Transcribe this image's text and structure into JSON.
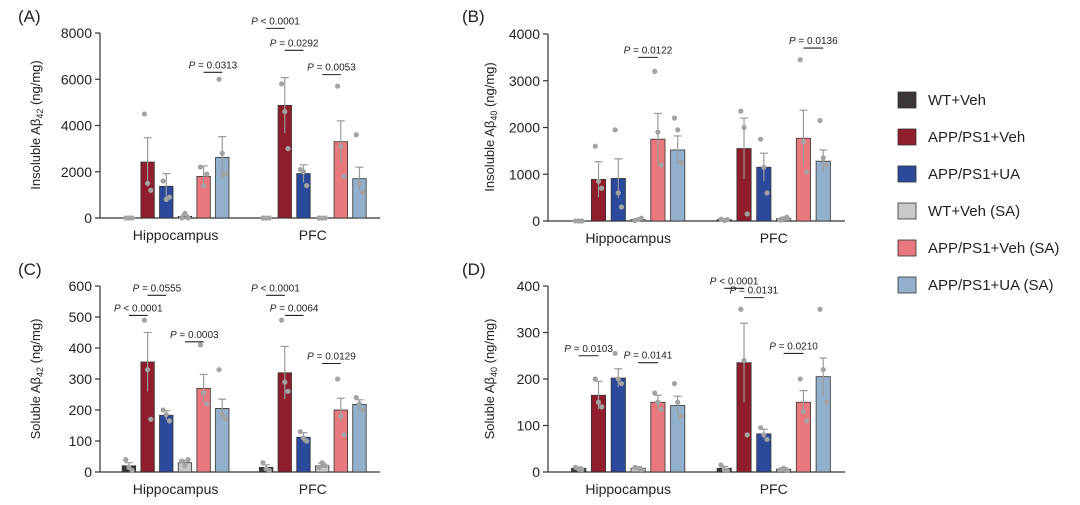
{
  "colors": {
    "wt": "#3a3536",
    "app": "#8f1d2c",
    "ua": "#2b4a9c",
    "wt_sa": "#c9c9c9",
    "app_sa": "#e8787d",
    "ua_sa": "#92b0cb",
    "dot": "#a3a3a3",
    "axis": "#333333"
  },
  "legend": {
    "items": [
      {
        "label": "WT+Veh",
        "key": "wt"
      },
      {
        "label": "APP/PS1+Veh",
        "key": "app"
      },
      {
        "label": "APP/PS1+UA",
        "key": "ua"
      },
      {
        "label": "WT+Veh (SA)",
        "key": "wt_sa"
      },
      {
        "label": "APP/PS1+Veh (SA)",
        "key": "app_sa"
      },
      {
        "label": "APP/PS1+UA (SA)",
        "key": "ua_sa"
      }
    ]
  },
  "chart_data": [
    {
      "panel": "(A)",
      "type": "bar",
      "ylabel_pre": "Insoluble Aβ",
      "ylabel_sub": "42",
      "ylabel_post": " (ng/mg)",
      "ylim": [
        0,
        8000
      ],
      "yticks": [
        0,
        2000,
        4000,
        6000,
        8000
      ],
      "categories": [
        "Hippocampus",
        "PFC"
      ],
      "series": [
        {
          "key": "wt",
          "values": [
            0,
            0
          ],
          "errors": [
            0,
            0
          ],
          "points": [
            [
              0,
              0,
              0
            ],
            [
              0,
              0,
              0
            ]
          ]
        },
        {
          "key": "app",
          "values": [
            2420,
            4870
          ],
          "errors": [
            1050,
            1200
          ],
          "points": [
            [
              4500,
              1500,
              1200
            ],
            [
              5800,
              4600,
              3000
            ]
          ]
        },
        {
          "key": "ua",
          "values": [
            1370,
            1920
          ],
          "errors": [
            550,
            380
          ],
          "points": [
            [
              1600,
              800,
              900
            ],
            [
              2100,
              2000,
              1400
            ]
          ]
        },
        {
          "key": "wt_sa",
          "values": [
            70,
            0
          ],
          "errors": [
            60,
            0
          ],
          "points": [
            [
              0,
              200,
              0
            ],
            [
              0,
              0,
              0
            ]
          ]
        },
        {
          "key": "app_sa",
          "values": [
            1800,
            3300
          ],
          "errors": [
            450,
            900
          ],
          "points": [
            [
              2200,
              1400,
              1900
            ],
            [
              5700,
              3100,
              1800
            ]
          ]
        },
        {
          "key": "ua_sa",
          "values": [
            2620,
            1700
          ],
          "errors": [
            900,
            500
          ],
          "points": [
            [
              6000,
              2800,
              1900
            ],
            [
              3600,
              1500,
              1100
            ]
          ]
        }
      ],
      "comparisons": [
        {
          "text": "P = 0.0313",
          "cat": 0,
          "a": 4,
          "b": 5,
          "y": 6300
        },
        {
          "text": "P < 0.0001",
          "cat": 1,
          "a": 0,
          "b": 1,
          "y": 8200
        },
        {
          "text": "P = 0.0292",
          "cat": 1,
          "a": 1,
          "b": 2,
          "y": 7250
        },
        {
          "text": "P = 0.0053",
          "cat": 1,
          "a": 3,
          "b": 4,
          "y": 6200
        }
      ]
    },
    {
      "panel": "(B)",
      "type": "bar",
      "ylabel_pre": "Insoluble Aβ",
      "ylabel_sub": "40",
      "ylabel_post": " (ng/mg)",
      "ylim": [
        0,
        4000
      ],
      "yticks": [
        0,
        1000,
        2000,
        3000,
        4000
      ],
      "categories": [
        "Hippocampus",
        "PFC"
      ],
      "series": [
        {
          "key": "wt",
          "values": [
            0,
            30
          ],
          "errors": [
            0,
            20
          ],
          "points": [
            [
              0,
              0,
              0
            ],
            [
              40,
              10,
              30
            ]
          ]
        },
        {
          "key": "app",
          "values": [
            890,
            1550
          ],
          "errors": [
            380,
            650
          ],
          "points": [
            [
              1600,
              850,
              700
            ],
            [
              2350,
              2000,
              150
            ]
          ]
        },
        {
          "key": "ua",
          "values": [
            910,
            1150
          ],
          "errors": [
            420,
            300
          ],
          "points": [
            [
              1950,
              600,
              300
            ],
            [
              1750,
              1150,
              600
            ]
          ]
        },
        {
          "key": "wt_sa",
          "values": [
            30,
            50
          ],
          "errors": [
            20,
            30
          ],
          "points": [
            [
              10,
              30,
              60
            ],
            [
              20,
              50,
              80
            ]
          ]
        },
        {
          "key": "app_sa",
          "values": [
            1750,
            1770
          ],
          "errors": [
            550,
            600
          ],
          "points": [
            [
              3200,
              1900,
              1200
            ],
            [
              3450,
              1700,
              1050
            ]
          ]
        },
        {
          "key": "ua_sa",
          "values": [
            1520,
            1280
          ],
          "errors": [
            300,
            240
          ],
          "points": [
            [
              2200,
              1950,
              1250
            ],
            [
              2150,
              1350,
              1200
            ]
          ]
        }
      ],
      "comparisons": [
        {
          "text": "P = 0.0122",
          "cat": 0,
          "a": 3,
          "b": 4,
          "y": 3500
        },
        {
          "text": "P = 0.0136",
          "cat": 1,
          "a": 4,
          "b": 5,
          "y": 3700
        }
      ]
    },
    {
      "panel": "(C)",
      "type": "bar",
      "ylabel_pre": "Soluble Aβ",
      "ylabel_sub": "42",
      "ylabel_post": " (ng/mg)",
      "ylim": [
        0,
        600
      ],
      "yticks": [
        0,
        100,
        200,
        300,
        400,
        500,
        600
      ],
      "categories": [
        "Hippocampus",
        "PFC"
      ],
      "series": [
        {
          "key": "wt",
          "values": [
            20,
            15
          ],
          "errors": [
            10,
            8
          ],
          "points": [
            [
              40,
              15,
              5
            ],
            [
              30,
              10,
              5
            ]
          ]
        },
        {
          "key": "app",
          "values": [
            355,
            320
          ],
          "errors": [
            95,
            85
          ],
          "points": [
            [
              490,
              330,
              170
            ],
            [
              490,
              290,
              260
            ]
          ]
        },
        {
          "key": "ua",
          "values": [
            183,
            112
          ],
          "errors": [
            15,
            15
          ],
          "points": [
            [
              200,
              185,
              165
            ],
            [
              130,
              110,
              100
            ]
          ]
        },
        {
          "key": "wt_sa",
          "values": [
            30,
            20
          ],
          "errors": [
            8,
            8
          ],
          "points": [
            [
              35,
              20,
              40
            ],
            [
              15,
              30,
              20
            ]
          ]
        },
        {
          "key": "app_sa",
          "values": [
            270,
            200
          ],
          "errors": [
            45,
            38
          ],
          "points": [
            [
              410,
              255,
              220
            ],
            [
              300,
              180,
              120
            ]
          ]
        },
        {
          "key": "ua_sa",
          "values": [
            205,
            218
          ],
          "errors": [
            30,
            15
          ],
          "points": [
            [
              330,
              185,
              170
            ],
            [
              240,
              220,
              200
            ]
          ]
        }
      ],
      "comparisons": [
        {
          "text": "P < 0.0001",
          "cat": 0,
          "a": 0,
          "b": 1,
          "y": 505
        },
        {
          "text": "P = 0.0555",
          "cat": 0,
          "a": 1,
          "b": 2,
          "y": 570
        },
        {
          "text": "P = 0.0003",
          "cat": 0,
          "a": 3,
          "b": 4,
          "y": 420
        },
        {
          "text": "P < 0.0001",
          "cat": 1,
          "a": 0,
          "b": 1,
          "y": 570
        },
        {
          "text": "P = 0.0064",
          "cat": 1,
          "a": 1,
          "b": 2,
          "y": 505
        },
        {
          "text": "P = 0.0129",
          "cat": 1,
          "a": 3,
          "b": 4,
          "y": 350
        }
      ]
    },
    {
      "panel": "(D)",
      "type": "bar",
      "ylabel_pre": "Soluble Aβ",
      "ylabel_sub": "40",
      "ylabel_post": " (ng/mg)",
      "ylim": [
        0,
        400
      ],
      "yticks": [
        0,
        100,
        200,
        300,
        400
      ],
      "categories": [
        "Hippocampus",
        "PFC"
      ],
      "series": [
        {
          "key": "wt",
          "values": [
            8,
            8
          ],
          "errors": [
            3,
            4
          ],
          "points": [
            [
              10,
              6,
              5
            ],
            [
              15,
              5,
              3
            ]
          ]
        },
        {
          "key": "app",
          "values": [
            165,
            235
          ],
          "errors": [
            30,
            85
          ],
          "points": [
            [
              200,
              150,
              140
            ],
            [
              350,
              240,
              80
            ]
          ]
        },
        {
          "key": "ua",
          "values": [
            202,
            82
          ],
          "errors": [
            20,
            10
          ],
          "points": [
            [
              255,
              200,
              190
            ],
            [
              95,
              80,
              70
            ]
          ]
        },
        {
          "key": "wt_sa",
          "values": [
            8,
            6
          ],
          "errors": [
            3,
            3
          ],
          "points": [
            [
              10,
              8,
              5
            ],
            [
              5,
              8,
              3
            ]
          ]
        },
        {
          "key": "app_sa",
          "values": [
            150,
            150
          ],
          "errors": [
            15,
            25
          ],
          "points": [
            [
              170,
              150,
              135
            ],
            [
              200,
              130,
              110
            ]
          ]
        },
        {
          "key": "ua_sa",
          "values": [
            143,
            205
          ],
          "errors": [
            20,
            40
          ],
          "points": [
            [
              190,
              150,
              120
            ],
            [
              350,
              220,
              150
            ]
          ]
        }
      ],
      "comparisons": [
        {
          "text": "P = 0.0103",
          "cat": 0,
          "a": 0,
          "b": 1,
          "y": 250
        },
        {
          "text": "P = 0.0141",
          "cat": 0,
          "a": 3,
          "b": 4,
          "y": 235
        },
        {
          "text": "P < 0.0001",
          "cat": 1,
          "a": 0,
          "b": 1,
          "y": 395
        },
        {
          "text": "P = 0.0131",
          "cat": 1,
          "a": 1,
          "b": 2,
          "y": 375
        },
        {
          "text": "P = 0.0210",
          "cat": 1,
          "a": 3,
          "b": 4,
          "y": 255
        }
      ]
    }
  ]
}
